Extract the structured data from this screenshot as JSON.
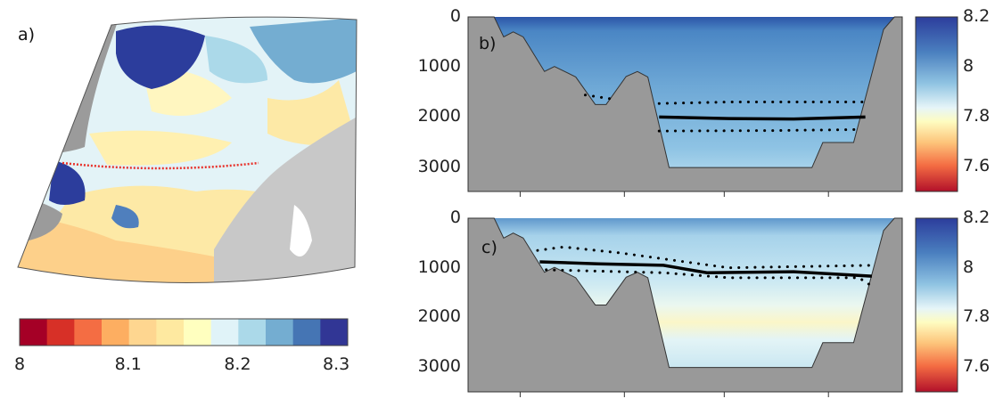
{
  "chart_data": [
    {
      "panel": "a)",
      "type": "heatmap",
      "colorbar": {
        "ticks": [
          "8",
          "8.1",
          "8.2",
          "8.3"
        ],
        "range": [
          8,
          8.3
        ],
        "orientation": "horizontal",
        "levels": 12,
        "colors": [
          "#a50026",
          "#d73027",
          "#f46d43",
          "#fdae61",
          "#fed690",
          "#fee9a0",
          "#ffffbf",
          "#e0f3f8",
          "#abd9e9",
          "#74add1",
          "#4575b4",
          "#313695"
        ]
      },
      "section_line_color": "#e8312a"
    },
    {
      "panel": "b)",
      "type": "heatmap",
      "y_ticks": [
        "0",
        "1000",
        "2000",
        "3000"
      ],
      "ylim": [
        3500,
        0
      ],
      "x_tick_count": 4,
      "colorbar": {
        "ticks": [
          "8.2",
          "8",
          "7.8",
          "7.6"
        ],
        "range": [
          7.5,
          8.2
        ],
        "orientation": "vertical"
      },
      "solid_line_depth": 2000,
      "dotted_line_depths": [
        1700,
        2250
      ]
    },
    {
      "panel": "c)",
      "type": "heatmap",
      "y_ticks": [
        "0",
        "1000",
        "2000",
        "3000"
      ],
      "ylim": [
        3500,
        0
      ],
      "x_tick_count": 4,
      "colorbar": {
        "ticks": [
          "8.2",
          "8",
          "7.8",
          "7.6"
        ],
        "range": [
          7.5,
          8.2
        ],
        "orientation": "vertical"
      },
      "solid_line_depth_range": [
        900,
        1170
      ],
      "dotted_line_depth_ranges": [
        [
          580,
          1000
        ],
        [
          1050,
          1350
        ]
      ]
    }
  ],
  "labels": {
    "a": "a)",
    "b": "b)",
    "c": "c)"
  },
  "colors": {
    "land": "#9b9b9b",
    "seafloor": "#999999"
  }
}
